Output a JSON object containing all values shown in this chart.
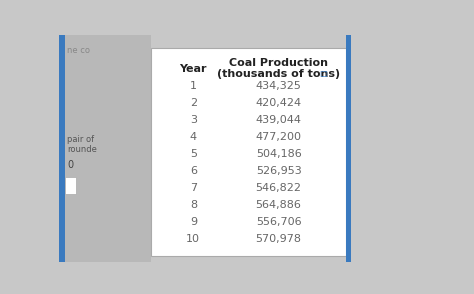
{
  "col1_header": "Year",
  "col2_header": "Coal Production\n(thousands of tons)",
  "years": [
    "1",
    "2",
    "3",
    "4",
    "5",
    "6",
    "7",
    "8",
    "9",
    "10"
  ],
  "values": [
    "434,325",
    "420,424",
    "439,044",
    "477,200",
    "504,186",
    "526,953",
    "546,822",
    "564,886",
    "556,706",
    "570,978"
  ],
  "bg_color": "#c8c8c8",
  "left_bg_color": "#d0d0d0",
  "table_bg": "#ffffff",
  "border_color": "#aaaaaa",
  "text_color": "#666666",
  "header_color": "#222222",
  "left_strip_color": "#3a7abf",
  "left_text_color": "#555555"
}
